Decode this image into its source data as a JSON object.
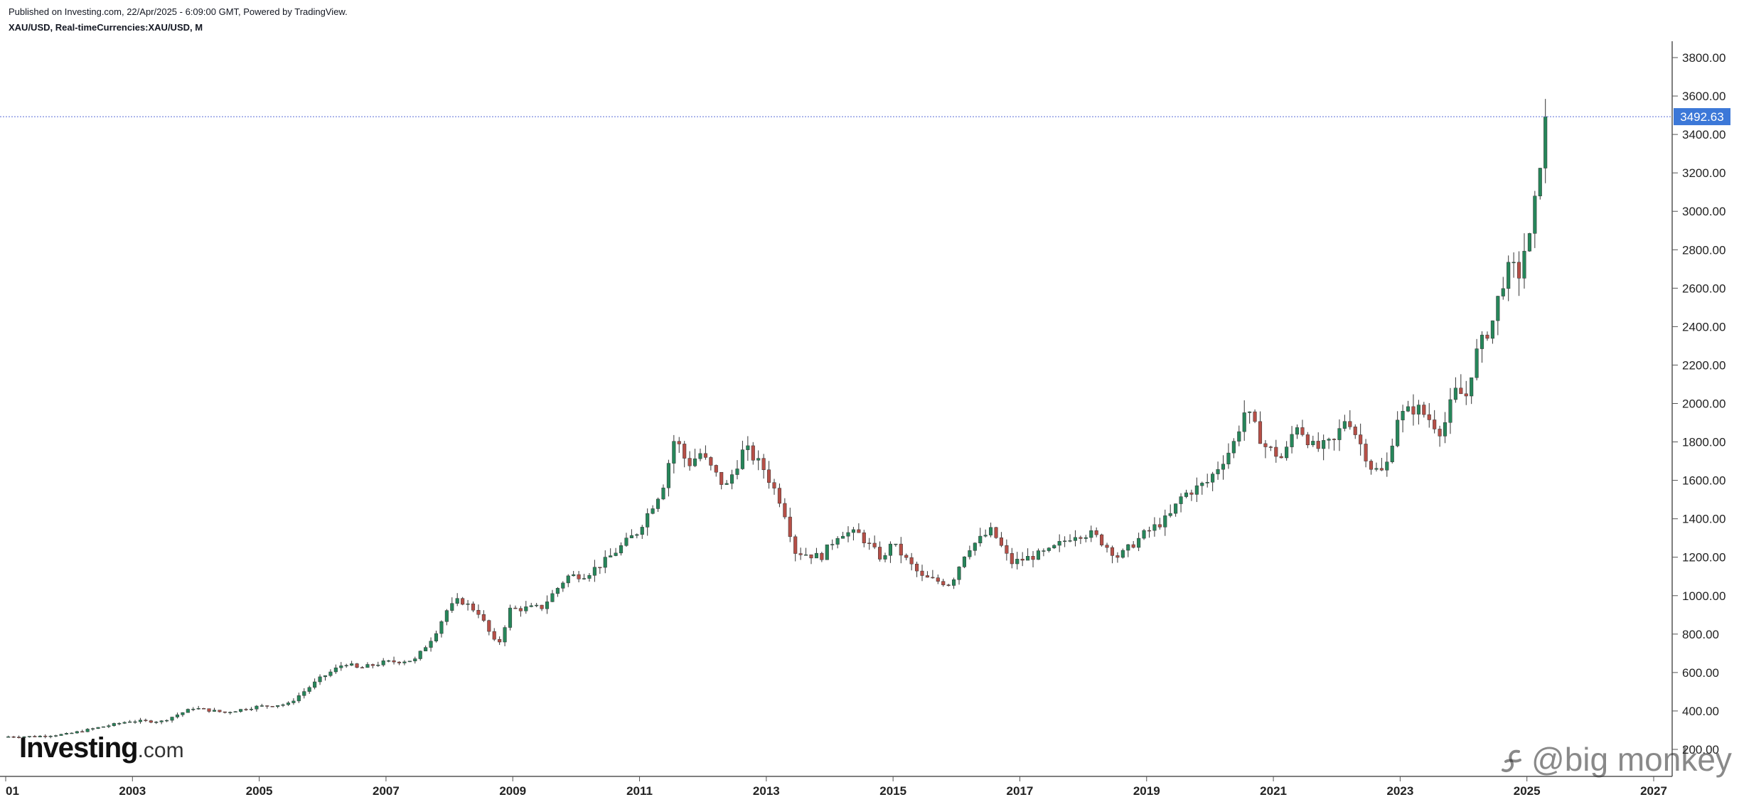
{
  "header": {
    "published": "Published on Investing.com, 22/Apr/2025 - 6:09:00 GMT, Powered by TradingView.",
    "symbol": "XAU/USD, Real-timeCurrencies:XAU/USD, M"
  },
  "logo": {
    "main": "Investing",
    "suffix": ".com"
  },
  "watermark": {
    "text": "@big monkey"
  },
  "colors": {
    "up": "#26865a",
    "down": "#b64f47",
    "wick": "#333333",
    "last_price_bg": "#3c78d8",
    "price_line": "#5b6fd6"
  },
  "chart_data": {
    "type": "candlestick",
    "title": "XAU/USD, Real-timeCurrencies:XAU/USD, M",
    "timeframe": "monthly",
    "x_range": [
      2001.0,
      2027.4
    ],
    "y_range": [
      100,
      3900
    ],
    "y_ticks": [
      "200.00",
      "400.00",
      "600.00",
      "800.00",
      "1000.00",
      "1200.00",
      "1400.00",
      "1600.00",
      "1800.00",
      "2000.00",
      "2200.00",
      "2400.00",
      "2600.00",
      "2800.00",
      "3000.00",
      "3200.00",
      "3400.00",
      "3600.00",
      "3800.00"
    ],
    "x_ticks": [
      "01",
      "2003",
      "2005",
      "2007",
      "2009",
      "2011",
      "2013",
      "2015",
      "2017",
      "2019",
      "2021",
      "2023",
      "2025",
      "2027"
    ],
    "last_price": "3492.63",
    "grid": false,
    "series": [
      {
        "close_anchors": [
          [
            2001.0,
            266
          ],
          [
            2001.5,
            267
          ],
          [
            2002.0,
            279
          ],
          [
            2002.5,
            313
          ],
          [
            2003.0,
            347
          ],
          [
            2003.5,
            346
          ],
          [
            2004.0,
            415
          ],
          [
            2004.5,
            392
          ],
          [
            2005.0,
            422
          ],
          [
            2005.5,
            436
          ],
          [
            2006.0,
            568
          ],
          [
            2006.4,
            650
          ],
          [
            2006.6,
            620
          ],
          [
            2007.0,
            652
          ],
          [
            2007.5,
            666
          ],
          [
            2007.8,
            795
          ],
          [
            2008.0,
            923
          ],
          [
            2008.2,
            980
          ],
          [
            2008.5,
            913
          ],
          [
            2008.8,
            730
          ],
          [
            2009.0,
            928
          ],
          [
            2009.5,
            940
          ],
          [
            2009.9,
            1100
          ],
          [
            2010.2,
            1110
          ],
          [
            2010.5,
            1180
          ],
          [
            2011.0,
            1330
          ],
          [
            2011.4,
            1560
          ],
          [
            2011.6,
            1828
          ],
          [
            2011.8,
            1680
          ],
          [
            2012.0,
            1740
          ],
          [
            2012.4,
            1560
          ],
          [
            2012.7,
            1770
          ],
          [
            2013.0,
            1660
          ],
          [
            2013.3,
            1470
          ],
          [
            2013.5,
            1230
          ],
          [
            2013.9,
            1200
          ],
          [
            2014.2,
            1330
          ],
          [
            2014.5,
            1320
          ],
          [
            2014.9,
            1180
          ],
          [
            2015.0,
            1280
          ],
          [
            2015.5,
            1095
          ],
          [
            2015.95,
            1060
          ],
          [
            2016.2,
            1240
          ],
          [
            2016.6,
            1340
          ],
          [
            2016.9,
            1170
          ],
          [
            2017.5,
            1230
          ],
          [
            2017.9,
            1320
          ],
          [
            2018.2,
            1320
          ],
          [
            2018.6,
            1200
          ],
          [
            2019.0,
            1320
          ],
          [
            2019.4,
            1410
          ],
          [
            2019.6,
            1520
          ],
          [
            2020.0,
            1590
          ],
          [
            2020.4,
            1780
          ],
          [
            2020.6,
            1970
          ],
          [
            2020.9,
            1780
          ],
          [
            2021.2,
            1710
          ],
          [
            2021.4,
            1900
          ],
          [
            2021.7,
            1760
          ],
          [
            2022.0,
            1800
          ],
          [
            2022.2,
            1940
          ],
          [
            2022.6,
            1660
          ],
          [
            2022.8,
            1640
          ],
          [
            2023.0,
            1930
          ],
          [
            2023.3,
            1980
          ],
          [
            2023.5,
            1920
          ],
          [
            2023.7,
            1850
          ],
          [
            2023.9,
            2060
          ],
          [
            2024.1,
            2040
          ],
          [
            2024.2,
            2230
          ],
          [
            2024.35,
            2330
          ],
          [
            2024.5,
            2430
          ],
          [
            2024.65,
            2630
          ],
          [
            2024.8,
            2720
          ],
          [
            2024.9,
            2650
          ],
          [
            2025.0,
            2800
          ],
          [
            2025.1,
            2860
          ],
          [
            2025.2,
            3120
          ],
          [
            2025.3,
            3420
          ]
        ]
      }
    ]
  }
}
